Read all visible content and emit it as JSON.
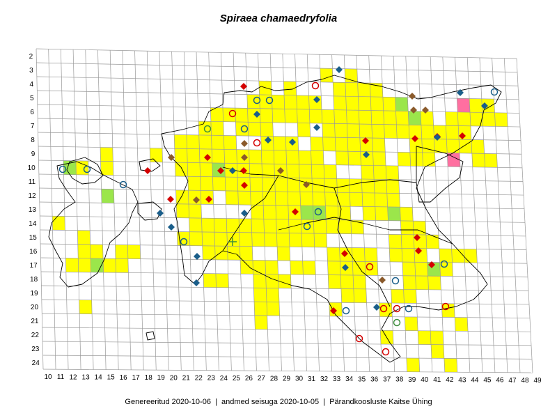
{
  "title": "Spiraea chamaedryfolia",
  "footer": {
    "generated": "Genereeritud 2020-10-06",
    "data_state": "andmed seisuga 2020-10-05",
    "organization": "Pärandkoosluste Kaitse Ühing",
    "separator": "|"
  },
  "colors": {
    "occupied": "#ffff00",
    "green_cell": "#9be64b",
    "pink_cell": "#ff6fa0",
    "grid_line": "#999999",
    "coast": "#000000",
    "marker_red": "#d40000",
    "marker_blue": "#1a5e8a",
    "marker_brown": "#8a5a2b",
    "marker_green": "#3c8c3c"
  },
  "grid": {
    "col_labels": [
      "10",
      "11",
      "12",
      "13",
      "14",
      "15",
      "16",
      "17",
      "18",
      "19",
      "20",
      "21",
      "22",
      "23",
      "24",
      "25",
      "26",
      "27",
      "28",
      "29",
      "30",
      "31",
      "32",
      "33",
      "34",
      "35",
      "36",
      "37",
      "38",
      "39",
      "40",
      "41",
      "42",
      "43",
      "44",
      "45",
      "46",
      "47",
      "48",
      "49"
    ],
    "row_labels": [
      "2",
      "3",
      "4",
      "5",
      "6",
      "7",
      "8",
      "9",
      "10",
      "11",
      "12",
      "13",
      "14",
      "15",
      "16",
      "17",
      "18",
      "19",
      "20",
      "21",
      "22",
      "23",
      "24"
    ]
  },
  "legend_icons": [
    "red-diamond-icon",
    "blue-diamond-icon",
    "brown-diamond-icon",
    "red-circle-icon",
    "blue-circle-icon",
    "green-circle-icon",
    "green-cross-icon"
  ]
}
